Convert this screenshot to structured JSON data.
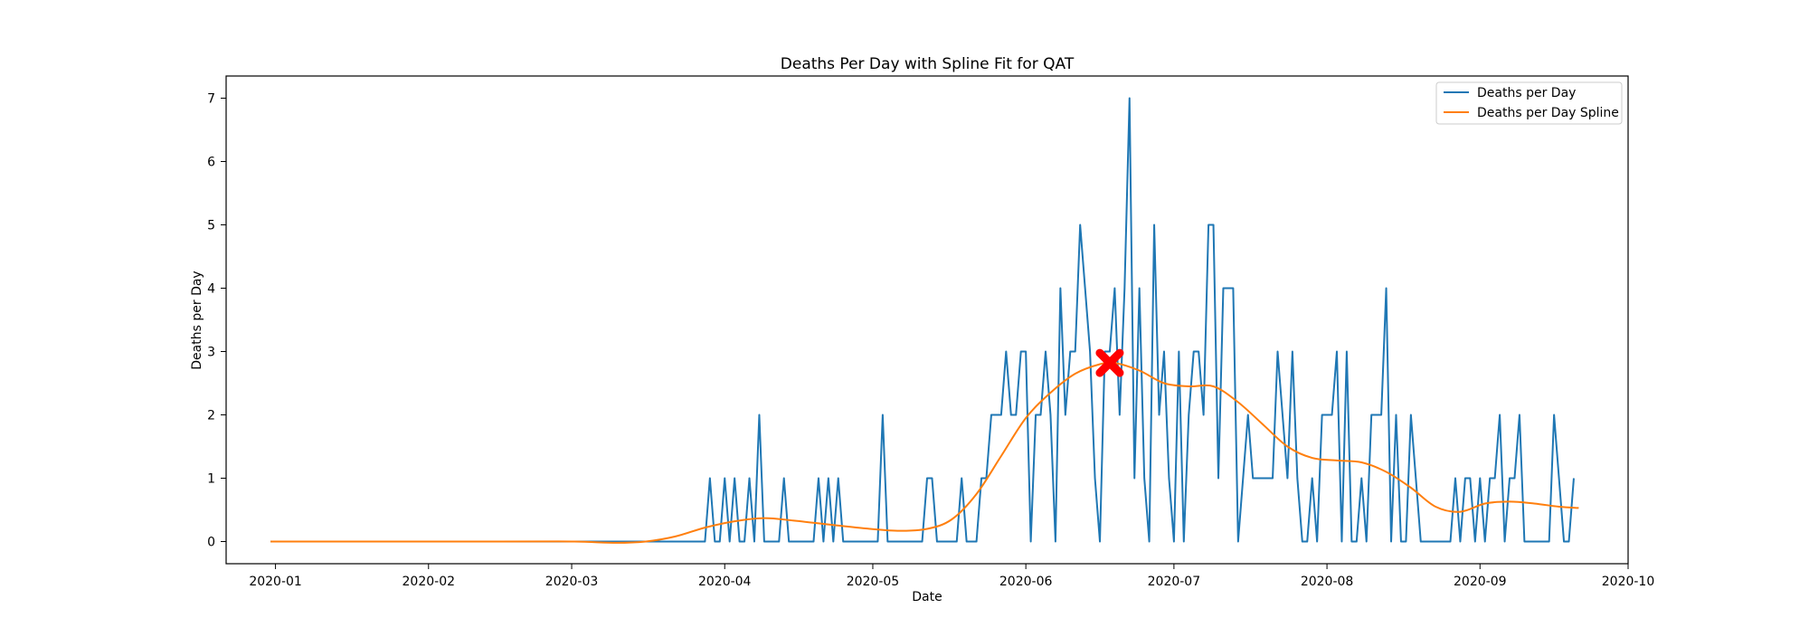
{
  "chart_data": {
    "type": "line",
    "title": "Deaths Per Day with Spline Fit for QAT",
    "xlabel": "Date",
    "ylabel": "Deaths per Day",
    "xlim": [
      "2019-12-22",
      "2020-10-01"
    ],
    "ylim": [
      -0.35,
      7.35
    ],
    "x_ticks": [
      "2020-01-01",
      "2020-02-01",
      "2020-03-01",
      "2020-04-01",
      "2020-05-01",
      "2020-06-01",
      "2020-07-01",
      "2020-08-01",
      "2020-09-01",
      "2020-10-01"
    ],
    "x_tick_labels": [
      "2020-01",
      "2020-02",
      "2020-03",
      "2020-04",
      "2020-05",
      "2020-06",
      "2020-07",
      "2020-08",
      "2020-09",
      "2020-10"
    ],
    "y_ticks": [
      0,
      1,
      2,
      3,
      4,
      5,
      6,
      7
    ],
    "y_tick_labels": [
      "0",
      "1",
      "2",
      "3",
      "4",
      "5",
      "6",
      "7"
    ],
    "grid": false,
    "legend": {
      "position": "top-right"
    },
    "series": [
      {
        "name": "Deaths per Day",
        "color": "#1f77b4",
        "points": [
          [
            "2019-12-31",
            0
          ],
          [
            "2020-03-28",
            0
          ],
          [
            "2020-03-29",
            1
          ],
          [
            "2020-03-30",
            0
          ],
          [
            "2020-03-31",
            0
          ],
          [
            "2020-04-01",
            1
          ],
          [
            "2020-04-02",
            0
          ],
          [
            "2020-04-03",
            1
          ],
          [
            "2020-04-04",
            0
          ],
          [
            "2020-04-05",
            0
          ],
          [
            "2020-04-06",
            1
          ],
          [
            "2020-04-07",
            0
          ],
          [
            "2020-04-08",
            2
          ],
          [
            "2020-04-09",
            0
          ],
          [
            "2020-04-12",
            0
          ],
          [
            "2020-04-13",
            1
          ],
          [
            "2020-04-14",
            0
          ],
          [
            "2020-04-19",
            0
          ],
          [
            "2020-04-20",
            1
          ],
          [
            "2020-04-21",
            0
          ],
          [
            "2020-04-22",
            1
          ],
          [
            "2020-04-23",
            0
          ],
          [
            "2020-04-24",
            1
          ],
          [
            "2020-04-25",
            0
          ],
          [
            "2020-05-02",
            0
          ],
          [
            "2020-05-03",
            2
          ],
          [
            "2020-05-04",
            0
          ],
          [
            "2020-05-11",
            0
          ],
          [
            "2020-05-12",
            1
          ],
          [
            "2020-05-13",
            1
          ],
          [
            "2020-05-14",
            0
          ],
          [
            "2020-05-18",
            0
          ],
          [
            "2020-05-19",
            1
          ],
          [
            "2020-05-20",
            0
          ],
          [
            "2020-05-22",
            0
          ],
          [
            "2020-05-23",
            1
          ],
          [
            "2020-05-24",
            1
          ],
          [
            "2020-05-25",
            2
          ],
          [
            "2020-05-27",
            2
          ],
          [
            "2020-05-28",
            3
          ],
          [
            "2020-05-29",
            2
          ],
          [
            "2020-05-30",
            2
          ],
          [
            "2020-05-31",
            3
          ],
          [
            "2020-06-01",
            3
          ],
          [
            "2020-06-02",
            0
          ],
          [
            "2020-06-03",
            2
          ],
          [
            "2020-06-04",
            2
          ],
          [
            "2020-06-05",
            3
          ],
          [
            "2020-06-06",
            2
          ],
          [
            "2020-06-07",
            0
          ],
          [
            "2020-06-08",
            4
          ],
          [
            "2020-06-09",
            2
          ],
          [
            "2020-06-10",
            3
          ],
          [
            "2020-06-11",
            3
          ],
          [
            "2020-06-12",
            5
          ],
          [
            "2020-06-13",
            4
          ],
          [
            "2020-06-14",
            3
          ],
          [
            "2020-06-15",
            1
          ],
          [
            "2020-06-16",
            0
          ],
          [
            "2020-06-17",
            3
          ],
          [
            "2020-06-18",
            3
          ],
          [
            "2020-06-19",
            4
          ],
          [
            "2020-06-20",
            2
          ],
          [
            "2020-06-21",
            4
          ],
          [
            "2020-06-22",
            7
          ],
          [
            "2020-06-23",
            1
          ],
          [
            "2020-06-24",
            4
          ],
          [
            "2020-06-25",
            1
          ],
          [
            "2020-06-26",
            0
          ],
          [
            "2020-06-27",
            5
          ],
          [
            "2020-06-28",
            2
          ],
          [
            "2020-06-29",
            3
          ],
          [
            "2020-06-30",
            1
          ],
          [
            "2020-07-01",
            0
          ],
          [
            "2020-07-02",
            3
          ],
          [
            "2020-07-03",
            0
          ],
          [
            "2020-07-04",
            2
          ],
          [
            "2020-07-05",
            3
          ],
          [
            "2020-07-06",
            3
          ],
          [
            "2020-07-07",
            2
          ],
          [
            "2020-07-08",
            5
          ],
          [
            "2020-07-09",
            5
          ],
          [
            "2020-07-10",
            1
          ],
          [
            "2020-07-11",
            4
          ],
          [
            "2020-07-13",
            4
          ],
          [
            "2020-07-14",
            0
          ],
          [
            "2020-07-15",
            1
          ],
          [
            "2020-07-16",
            2
          ],
          [
            "2020-07-17",
            1
          ],
          [
            "2020-07-21",
            1
          ],
          [
            "2020-07-22",
            3
          ],
          [
            "2020-07-23",
            2
          ],
          [
            "2020-07-24",
            1
          ],
          [
            "2020-07-25",
            3
          ],
          [
            "2020-07-26",
            1
          ],
          [
            "2020-07-27",
            0
          ],
          [
            "2020-07-28",
            0
          ],
          [
            "2020-07-29",
            1
          ],
          [
            "2020-07-30",
            0
          ],
          [
            "2020-07-31",
            2
          ],
          [
            "2020-08-02",
            2
          ],
          [
            "2020-08-03",
            3
          ],
          [
            "2020-08-04",
            0
          ],
          [
            "2020-08-05",
            3
          ],
          [
            "2020-08-06",
            0
          ],
          [
            "2020-08-07",
            0
          ],
          [
            "2020-08-08",
            1
          ],
          [
            "2020-08-09",
            0
          ],
          [
            "2020-08-10",
            2
          ],
          [
            "2020-08-12",
            2
          ],
          [
            "2020-08-13",
            4
          ],
          [
            "2020-08-14",
            0
          ],
          [
            "2020-08-15",
            2
          ],
          [
            "2020-08-16",
            0
          ],
          [
            "2020-08-17",
            0
          ],
          [
            "2020-08-18",
            2
          ],
          [
            "2020-08-19",
            1
          ],
          [
            "2020-08-20",
            0
          ],
          [
            "2020-08-26",
            0
          ],
          [
            "2020-08-27",
            1
          ],
          [
            "2020-08-28",
            0
          ],
          [
            "2020-08-29",
            1
          ],
          [
            "2020-08-30",
            1
          ],
          [
            "2020-08-31",
            0
          ],
          [
            "2020-09-01",
            1
          ],
          [
            "2020-09-02",
            0
          ],
          [
            "2020-09-03",
            1
          ],
          [
            "2020-09-04",
            1
          ],
          [
            "2020-09-05",
            2
          ],
          [
            "2020-09-06",
            0
          ],
          [
            "2020-09-07",
            1
          ],
          [
            "2020-09-08",
            1
          ],
          [
            "2020-09-09",
            2
          ],
          [
            "2020-09-10",
            0
          ],
          [
            "2020-09-15",
            0
          ],
          [
            "2020-09-16",
            2
          ],
          [
            "2020-09-18",
            0
          ],
          [
            "2020-09-19",
            0
          ],
          [
            "2020-09-20",
            1
          ]
        ]
      },
      {
        "name": "Deaths per Day Spline",
        "color": "#ff7f0e",
        "points": [
          [
            "2019-12-31",
            0
          ],
          [
            "2020-02-15",
            0
          ],
          [
            "2020-03-01",
            0
          ],
          [
            "2020-03-10",
            -0.02
          ],
          [
            "2020-03-16",
            0
          ],
          [
            "2020-03-22",
            0.08
          ],
          [
            "2020-03-28",
            0.22
          ],
          [
            "2020-04-03",
            0.32
          ],
          [
            "2020-04-09",
            0.37
          ],
          [
            "2020-04-15",
            0.33
          ],
          [
            "2020-04-22",
            0.27
          ],
          [
            "2020-04-29",
            0.21
          ],
          [
            "2020-05-06",
            0.17
          ],
          [
            "2020-05-12",
            0.2
          ],
          [
            "2020-05-17",
            0.35
          ],
          [
            "2020-05-22",
            0.75
          ],
          [
            "2020-05-27",
            1.35
          ],
          [
            "2020-06-01",
            1.95
          ],
          [
            "2020-06-06",
            2.35
          ],
          [
            "2020-06-11",
            2.65
          ],
          [
            "2020-06-16",
            2.8
          ],
          [
            "2020-06-19",
            2.82
          ],
          [
            "2020-06-24",
            2.7
          ],
          [
            "2020-06-29",
            2.5
          ],
          [
            "2020-07-04",
            2.45
          ],
          [
            "2020-07-09",
            2.45
          ],
          [
            "2020-07-14",
            2.2
          ],
          [
            "2020-07-19",
            1.85
          ],
          [
            "2020-07-24",
            1.5
          ],
          [
            "2020-07-29",
            1.32
          ],
          [
            "2020-08-03",
            1.28
          ],
          [
            "2020-08-08",
            1.25
          ],
          [
            "2020-08-13",
            1.1
          ],
          [
            "2020-08-18",
            0.85
          ],
          [
            "2020-08-23",
            0.55
          ],
          [
            "2020-08-28",
            0.47
          ],
          [
            "2020-09-02",
            0.6
          ],
          [
            "2020-09-07",
            0.63
          ],
          [
            "2020-09-12",
            0.6
          ],
          [
            "2020-09-17",
            0.55
          ],
          [
            "2020-09-21",
            0.53
          ]
        ]
      }
    ],
    "annotations": [
      {
        "type": "x-marker",
        "x": "2020-06-18",
        "y": 2.82,
        "color": "#ff0000"
      }
    ]
  }
}
